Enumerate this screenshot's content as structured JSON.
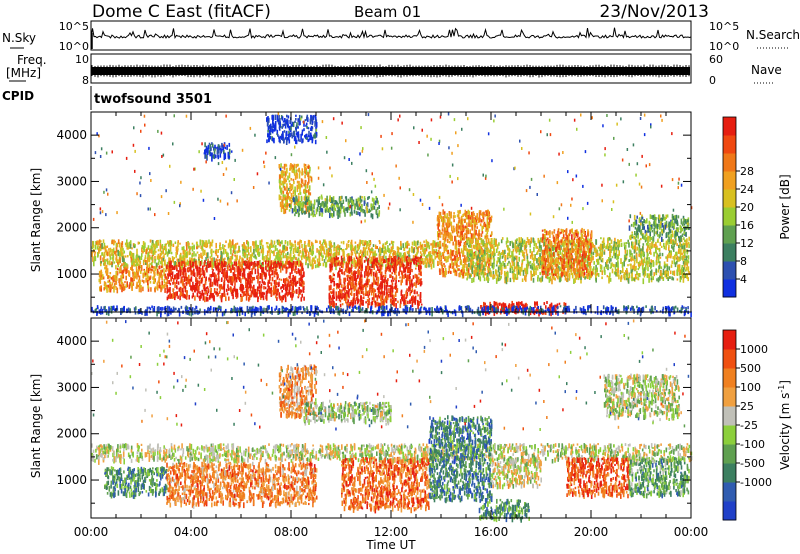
{
  "header": {
    "station": "Dome C East (fitACF)",
    "beam": "Beam 01",
    "date": "23/Nov/2013"
  },
  "noise_panel": {
    "left_label": "N.Sky",
    "right_label": "N.Search",
    "left_ticks": [
      "10^5",
      "10^0"
    ],
    "right_ticks": [
      "10^5",
      "10^0"
    ]
  },
  "freq_panel": {
    "left_label_line1": "Freq.",
    "left_label_line2": "[MHz]",
    "right_label": "Nave",
    "left_ticks": [
      "10",
      "8"
    ],
    "right_ticks": [
      "60",
      "0"
    ]
  },
  "cpid_panel": {
    "label": "CPID",
    "program": "twofsound 3501"
  },
  "chart_data": [
    {
      "type": "heatmap",
      "title": "",
      "quantity": "Power",
      "xlabel": "Time UT",
      "ylabel": "Slant Range [km]",
      "x_tick_labels": [
        "00:00",
        "04:00",
        "08:00",
        "12:00",
        "16:00",
        "20:00",
        "00:00"
      ],
      "xlim_hours": [
        0,
        24
      ],
      "y_tick_values": [
        1000,
        2000,
        3000,
        4000
      ],
      "ylim_km": [
        180,
        4500
      ],
      "colorbar_label": "Power [dB]",
      "colorbar_ticks": [
        "4",
        "8",
        "12",
        "16",
        "20",
        "24",
        "28"
      ],
      "colorbar_colors": [
        "#1030e0",
        "#2d50b0",
        "#3c7f60",
        "#5fa050",
        "#9acd32",
        "#d8c020",
        "#f0a020",
        "#f07818",
        "#f04810",
        "#e61e10"
      ],
      "echo_regions": [
        {
          "t0": 0.0,
          "t1": 14.0,
          "r0": 1200,
          "r1": 1750,
          "level": 0.55
        },
        {
          "t0": 0.3,
          "t1": 3.0,
          "r0": 700,
          "r1": 1200,
          "level": 0.7
        },
        {
          "t0": 3.0,
          "t1": 8.5,
          "r0": 500,
          "r1": 1300,
          "level": 0.95
        },
        {
          "t0": 9.5,
          "t1": 13.2,
          "r0": 350,
          "r1": 1400,
          "level": 0.9
        },
        {
          "t0": 7.5,
          "t1": 8.8,
          "r0": 2400,
          "r1": 3400,
          "level": 0.6
        },
        {
          "t0": 8.0,
          "t1": 11.5,
          "r0": 2300,
          "r1": 2700,
          "level": 0.35
        },
        {
          "t0": 13.8,
          "t1": 16.0,
          "r0": 1000,
          "r1": 2400,
          "level": 0.7
        },
        {
          "t0": 15.0,
          "t1": 23.9,
          "r0": 900,
          "r1": 1800,
          "level": 0.5
        },
        {
          "t0": 18.0,
          "t1": 20.0,
          "r0": 1000,
          "r1": 2000,
          "level": 0.75
        },
        {
          "t0": 15.5,
          "t1": 19.0,
          "r0": 190,
          "r1": 420,
          "level": 1.0
        },
        {
          "t0": 0.0,
          "t1": 24.0,
          "r0": 190,
          "r1": 330,
          "level": 0.1
        },
        {
          "t0": 21.5,
          "t1": 23.9,
          "r0": 1800,
          "r1": 2300,
          "level": 0.35
        },
        {
          "t0": 4.5,
          "t1": 5.6,
          "r0": 3550,
          "r1": 3850,
          "level": 0.1
        },
        {
          "t0": 7.0,
          "t1": 9.0,
          "r0": 3900,
          "r1": 4450,
          "level": 0.05
        }
      ]
    },
    {
      "type": "heatmap",
      "title": "",
      "quantity": "Velocity",
      "xlabel": "Time UT",
      "ylabel": "Slant Range [km]",
      "x_tick_labels": [
        "00:00",
        "04:00",
        "08:00",
        "12:00",
        "16:00",
        "20:00",
        "00:00"
      ],
      "xlim_hours": [
        0,
        24
      ],
      "y_tick_values": [
        1000,
        2000,
        3000,
        4000
      ],
      "ylim_km": [
        180,
        4500
      ],
      "colorbar_label": "Velocity [m s^-1]",
      "colorbar_ticks": [
        "1000",
        "500",
        "100",
        "25",
        "-25",
        "-100",
        "-500",
        "-1000"
      ],
      "colorbar_colors": [
        "#2040c8",
        "#305cb0",
        "#3c7f60",
        "#5fa050",
        "#8ccf3c",
        "#c0c0b8",
        "#f0a040",
        "#f08020",
        "#f05010",
        "#e61e10"
      ],
      "echo_regions": [
        {
          "t0": 0.0,
          "t1": 24.0,
          "r0": 1450,
          "r1": 1800,
          "level": 0.52
        },
        {
          "t0": 0.5,
          "t1": 3.0,
          "r0": 700,
          "r1": 1300,
          "level": 0.3
        },
        {
          "t0": 3.0,
          "t1": 9.0,
          "r0": 500,
          "r1": 1400,
          "level": 0.75
        },
        {
          "t0": 10.0,
          "t1": 13.5,
          "r0": 400,
          "r1": 1500,
          "level": 0.8
        },
        {
          "t0": 13.5,
          "t1": 16.0,
          "r0": 600,
          "r1": 2400,
          "level": 0.25
        },
        {
          "t0": 16.0,
          "t1": 18.0,
          "r0": 900,
          "r1": 1500,
          "level": 0.55
        },
        {
          "t0": 15.5,
          "t1": 17.5,
          "r0": 200,
          "r1": 600,
          "level": 0.3
        },
        {
          "t0": 19.0,
          "t1": 21.5,
          "r0": 700,
          "r1": 1500,
          "level": 0.85
        },
        {
          "t0": 21.5,
          "t1": 23.9,
          "r0": 700,
          "r1": 1500,
          "level": 0.35
        },
        {
          "t0": 7.5,
          "t1": 9.0,
          "r0": 2400,
          "r1": 3500,
          "level": 0.7
        },
        {
          "t0": 8.5,
          "t1": 12.0,
          "r0": 2300,
          "r1": 2700,
          "level": 0.45
        },
        {
          "t0": 20.5,
          "t1": 23.5,
          "r0": 2400,
          "r1": 3300,
          "level": 0.5
        }
      ]
    }
  ]
}
